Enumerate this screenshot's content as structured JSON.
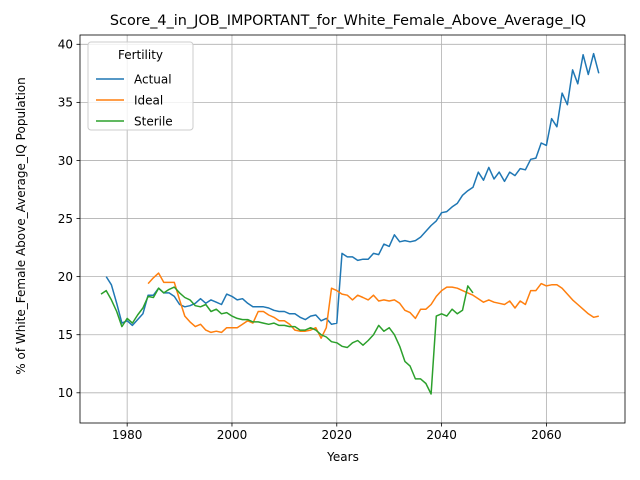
{
  "chart_data": {
    "type": "line",
    "title": "Score_4_in_JOB_IMPORTANT_for_White_Female_Above_Average_IQ",
    "xlabel": "Years",
    "ylabel": "% of White_Female Above_Average_IQ Population",
    "xlim": [
      1971,
      2075
    ],
    "ylim": [
      7.4,
      40.8
    ],
    "xticks": [
      1980,
      2000,
      2020,
      2040,
      2060
    ],
    "yticks": [
      10,
      15,
      20,
      25,
      30,
      35,
      40
    ],
    "grid": true,
    "legend": {
      "title": "Fertility",
      "position": "top-left"
    },
    "series": [
      {
        "name": "Actual",
        "color": "#1f77b4",
        "x": [
          1976,
          1977,
          1978,
          1979,
          1980,
          1981,
          1982,
          1983,
          1984,
          1985,
          1986,
          1987,
          1988,
          1989,
          1990,
          1991,
          1992,
          1993,
          1994,
          1995,
          1996,
          1997,
          1998,
          1999,
          2000,
          2001,
          2002,
          2003,
          2004,
          2005,
          2006,
          2007,
          2008,
          2009,
          2010,
          2011,
          2012,
          2013,
          2014,
          2015,
          2016,
          2017,
          2018,
          2019,
          2020,
          2021,
          2022,
          2023,
          2024,
          2025,
          2026,
          2027,
          2028,
          2029,
          2030,
          2031,
          2032,
          2033,
          2034,
          2035,
          2036,
          2037,
          2038,
          2039,
          2040,
          2041,
          2042,
          2043,
          2044,
          2045,
          2046,
          2047,
          2048,
          2049,
          2050,
          2051,
          2052,
          2053,
          2054,
          2055,
          2056,
          2057,
          2058,
          2059,
          2060,
          2061,
          2062,
          2063,
          2064,
          2065,
          2066,
          2067,
          2068,
          2069,
          2070
        ],
        "values": [
          20.0,
          19.3,
          17.7,
          16.0,
          16.2,
          15.8,
          16.3,
          16.8,
          18.4,
          18.4,
          19.0,
          18.6,
          18.6,
          18.3,
          17.6,
          17.4,
          17.5,
          17.7,
          18.1,
          17.7,
          18.0,
          17.8,
          17.6,
          18.5,
          18.3,
          18.0,
          18.1,
          17.7,
          17.4,
          17.4,
          17.4,
          17.3,
          17.1,
          17.0,
          17.0,
          16.8,
          16.8,
          16.5,
          16.3,
          16.6,
          16.7,
          16.2,
          16.4,
          15.9,
          16.0,
          22.0,
          21.7,
          21.7,
          21.4,
          21.5,
          21.5,
          22.0,
          21.9,
          22.8,
          22.6,
          23.6,
          23.0,
          23.1,
          23.0,
          23.1,
          23.4,
          23.9,
          24.4,
          24.8,
          25.5,
          25.6,
          26.0,
          26.3,
          27.0,
          27.4,
          27.7,
          29.0,
          28.3,
          29.4,
          28.4,
          29.0,
          28.2,
          29.0,
          28.7,
          29.3,
          29.2,
          30.1,
          30.2,
          31.5,
          31.3,
          33.6,
          32.9,
          35.8,
          34.8,
          37.8,
          36.6,
          39.1,
          37.4,
          39.2,
          37.5
        ]
      },
      {
        "name": "Ideal",
        "color": "#ff7f0e",
        "x": [
          1984,
          1985,
          1986,
          1987,
          1988,
          1989,
          1990,
          1991,
          1992,
          1993,
          1994,
          1995,
          1996,
          1997,
          1998,
          1999,
          2000,
          2001,
          2002,
          2003,
          2004,
          2005,
          2006,
          2007,
          2008,
          2009,
          2010,
          2011,
          2012,
          2013,
          2014,
          2015,
          2016,
          2017,
          2018,
          2019,
          2020,
          2021,
          2022,
          2023,
          2024,
          2025,
          2026,
          2027,
          2028,
          2029,
          2030,
          2031,
          2032,
          2033,
          2034,
          2035,
          2036,
          2037,
          2038,
          2039,
          2040,
          2041,
          2042,
          2043,
          2044,
          2045,
          2046,
          2047,
          2048,
          2049,
          2050,
          2051,
          2052,
          2053,
          2054,
          2055,
          2056,
          2057,
          2058,
          2059,
          2060,
          2061,
          2062,
          2063,
          2064,
          2065,
          2066,
          2067,
          2068,
          2069,
          2070
        ],
        "values": [
          19.4,
          19.9,
          20.3,
          19.5,
          19.5,
          19.5,
          18.0,
          16.6,
          16.1,
          15.7,
          15.9,
          15.4,
          15.2,
          15.3,
          15.2,
          15.6,
          15.6,
          15.6,
          15.9,
          16.2,
          16.0,
          17.0,
          17.0,
          16.7,
          16.5,
          16.2,
          16.2,
          15.9,
          15.4,
          15.3,
          15.3,
          15.4,
          15.6,
          14.7,
          15.6,
          19.0,
          18.8,
          18.5,
          18.4,
          18.0,
          18.4,
          18.2,
          18.0,
          18.4,
          17.9,
          18.0,
          17.9,
          18.0,
          17.7,
          17.1,
          16.9,
          16.4,
          17.2,
          17.2,
          17.6,
          18.3,
          18.8,
          19.1,
          19.1,
          19.0,
          18.8,
          18.6,
          18.4,
          18.1,
          17.8,
          18.0,
          17.8,
          17.7,
          17.6,
          17.9,
          17.3,
          17.9,
          17.6,
          18.8,
          18.8,
          19.4,
          19.2,
          19.3,
          19.3,
          19.0,
          18.5,
          18.0,
          17.6,
          17.2,
          16.8,
          16.5,
          16.6
        ]
      },
      {
        "name": "Sterile",
        "color": "#2ca02c",
        "x": [
          1975,
          1976,
          1977,
          1978,
          1979,
          1980,
          1981,
          1982,
          1983,
          1984,
          1985,
          1986,
          1987,
          1988,
          1989,
          1990,
          1991,
          1992,
          1993,
          1994,
          1995,
          1996,
          1997,
          1998,
          1999,
          2000,
          2001,
          2002,
          2003,
          2004,
          2005,
          2006,
          2007,
          2008,
          2009,
          2010,
          2011,
          2012,
          2013,
          2014,
          2015,
          2016,
          2017,
          2018,
          2019,
          2020,
          2021,
          2022,
          2023,
          2024,
          2025,
          2026,
          2027,
          2028,
          2029,
          2030,
          2031,
          2032,
          2033,
          2034,
          2035,
          2036,
          2037,
          2038,
          2039,
          2040,
          2041,
          2042,
          2043,
          2044,
          2045,
          2046
        ],
        "values": [
          18.5,
          18.8,
          18.0,
          17.0,
          15.7,
          16.4,
          16.0,
          16.7,
          17.3,
          18.3,
          18.2,
          19.0,
          18.6,
          18.9,
          19.1,
          18.6,
          18.2,
          18.0,
          17.5,
          17.4,
          17.6,
          17.0,
          17.2,
          16.8,
          16.9,
          16.6,
          16.4,
          16.3,
          16.3,
          16.1,
          16.1,
          16.0,
          15.9,
          16.0,
          15.8,
          15.8,
          15.7,
          15.7,
          15.4,
          15.4,
          15.6,
          15.4,
          15.0,
          14.8,
          14.4,
          14.3,
          14.0,
          13.9,
          14.3,
          14.5,
          14.1,
          14.5,
          15.0,
          15.8,
          15.3,
          15.6,
          15.0,
          14.0,
          12.7,
          12.3,
          11.2,
          11.2,
          10.8,
          9.9,
          16.6,
          16.8,
          16.6,
          17.2,
          16.8,
          17.1,
          19.2,
          18.6
        ]
      }
    ]
  }
}
